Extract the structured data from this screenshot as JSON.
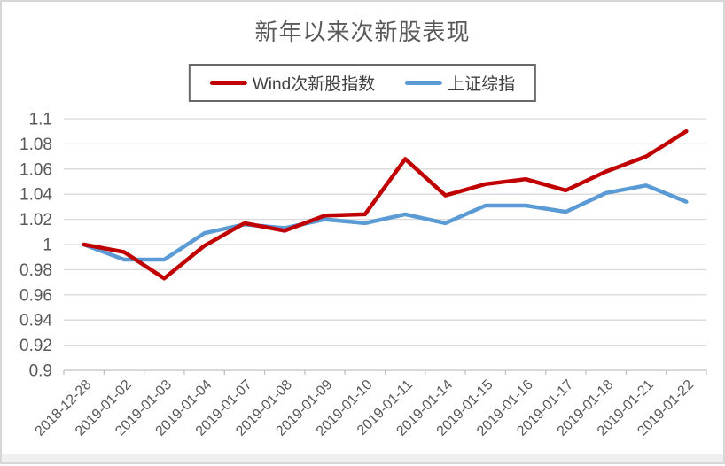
{
  "page": {
    "title": "新年以来次新股表现"
  },
  "legend": {
    "items": [
      {
        "label": "Wind次新股指数",
        "color": "#C00000"
      },
      {
        "label": "上证综指",
        "color": "#5B9BD5"
      }
    ]
  },
  "colors": {
    "grid": "#d9d9d9",
    "axis": "#c2c2c2",
    "text": "#595959",
    "series_red": "#C00000",
    "series_blue": "#5B9BD5",
    "legend_border": "#696969"
  },
  "chart_data": {
    "type": "line",
    "title": "新年以来次新股表现",
    "categories": [
      "2018-12-28",
      "2019-01-02",
      "2019-01-03",
      "2019-01-04",
      "2019-01-07",
      "2019-01-08",
      "2019-01-09",
      "2019-01-10",
      "2019-01-11",
      "2019-01-14",
      "2019-01-15",
      "2019-01-16",
      "2019-01-17",
      "2019-01-18",
      "2019-01-21",
      "2019-01-22"
    ],
    "series": [
      {
        "name": "Wind次新股指数",
        "color": "#C00000",
        "values": [
          1.0,
          0.994,
          0.973,
          0.999,
          1.017,
          1.011,
          1.023,
          1.024,
          1.068,
          1.039,
          1.048,
          1.052,
          1.043,
          1.058,
          1.07,
          1.09
        ]
      },
      {
        "name": "上证综指",
        "color": "#5B9BD5",
        "values": [
          1.0,
          0.988,
          0.988,
          1.009,
          1.016,
          1.013,
          1.02,
          1.017,
          1.024,
          1.017,
          1.031,
          1.031,
          1.026,
          1.041,
          1.047,
          1.034
        ]
      }
    ],
    "xlabel": "",
    "ylabel": "",
    "ylim": [
      0.9,
      1.1
    ],
    "ytick_interval": 0.02,
    "ytick_labels": [
      "1.1",
      "1.08",
      "1.06",
      "1.04",
      "1.02",
      "1",
      "0.98",
      "0.96",
      "0.94",
      "0.92",
      "0.9"
    ],
    "grid": "horizontal-only",
    "legend_position": "top",
    "x_label_rotation_deg": 45
  }
}
